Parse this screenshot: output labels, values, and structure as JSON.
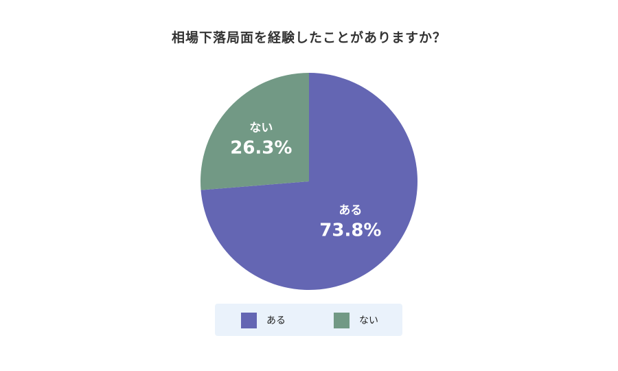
{
  "chart_data": {
    "type": "pie",
    "title": "相場下落局面を経験したことがありますか？",
    "slices": [
      {
        "name": "ある",
        "value": 73.8,
        "label": "73.8%",
        "color": "#6466b3"
      },
      {
        "name": "ない",
        "value": 26.3,
        "label": "26.3%",
        "color": "#729985"
      }
    ],
    "legend": {
      "position": "bottom",
      "items": [
        "ある",
        "ない"
      ]
    }
  }
}
